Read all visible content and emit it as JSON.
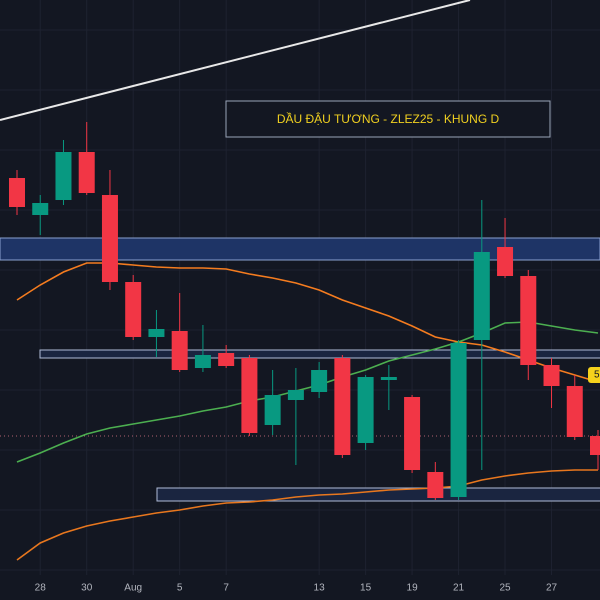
{
  "chart_data": {
    "type": "candlestick",
    "title": "DẦU ĐẬU TƯƠNG - ZLEZ25 - KHUNG D",
    "categories": [
      null,
      "28",
      null,
      "30",
      null,
      "Aug",
      null,
      "5",
      null,
      "7",
      null,
      null,
      null,
      "13",
      null,
      "15",
      null,
      "19",
      null,
      "21",
      null,
      "25",
      null,
      "27",
      null,
      null
    ],
    "open": [
      422,
      385,
      400,
      448,
      405,
      318,
      263,
      269,
      232,
      247,
      242,
      175,
      200,
      208,
      242,
      157,
      220,
      203,
      128,
      103,
      260,
      353,
      324,
      235,
      214,
      164
    ],
    "high": [
      430,
      405,
      460,
      478,
      430,
      325,
      290,
      307,
      275,
      255,
      245,
      230,
      232,
      238,
      245,
      225,
      235,
      205,
      138,
      260,
      400,
      382,
      330,
      242,
      225,
      170
    ],
    "low": [
      385,
      365,
      395,
      405,
      310,
      260,
      243,
      228,
      228,
      232,
      164,
      165,
      135,
      202,
      142,
      150,
      190,
      127,
      100,
      100,
      130,
      322,
      220,
      192,
      160,
      130
    ],
    "close": [
      393,
      397,
      448,
      407,
      318,
      263,
      271,
      230,
      245,
      234,
      167,
      205,
      210,
      230,
      145,
      223,
      223,
      130,
      102,
      257,
      348,
      324,
      235,
      214,
      163,
      145
    ],
    "up_color": "#089981",
    "down_color": "#f23645",
    "series": [
      {
        "color": "#f57c1f",
        "values": [
          300,
          315,
          328,
          337,
          337,
          335,
          333,
          332,
          332,
          331,
          326,
          322,
          317,
          310,
          300,
          292,
          284,
          274,
          263,
          258,
          255,
          248,
          240,
          232,
          225,
          218
        ]
      },
      {
        "color": "#4caf50",
        "values": [
          138,
          147,
          157,
          166,
          172,
          176,
          180,
          184,
          189,
          193,
          199,
          203,
          209,
          215,
          223,
          230,
          239,
          245,
          251,
          258,
          267,
          277,
          278,
          274,
          270,
          267
        ]
      },
      {
        "color": "#e8771e",
        "values": [
          40,
          57,
          67,
          74,
          79,
          83,
          87,
          90,
          94,
          97,
          98,
          100,
          103,
          105,
          106,
          108,
          110,
          111,
          112,
          114,
          120,
          124,
          127,
          129,
          130,
          130
        ]
      }
    ],
    "ylim": [
      0,
      600
    ],
    "price_tag": "5"
  }
}
